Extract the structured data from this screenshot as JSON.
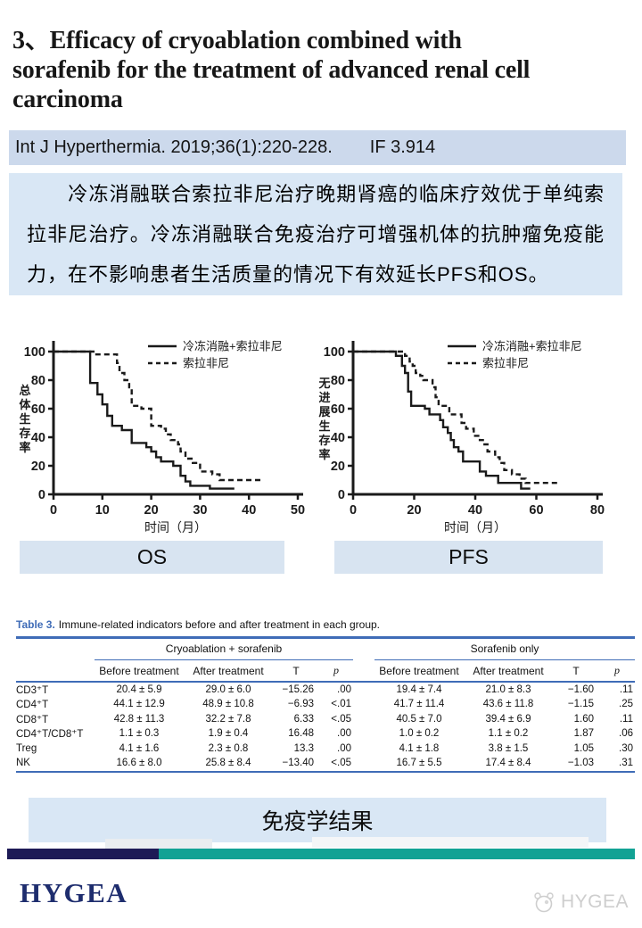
{
  "colors": {
    "citation_bar_bg": "#ccd9ec",
    "panel_bg": "#d9e7f5",
    "label_bg": "#d8e4f1",
    "table_rule_blue": "#3f6cb7",
    "navy": "#1d1a56",
    "teal": "#12a294",
    "logo_navy": "#1e2d6e",
    "ink": "#1a1a1a",
    "watermark_gray": "#c6c6c6"
  },
  "slide": {
    "title_lines": [
      "3、Efficacy of cryoablation combined with",
      "sorafenib for the treatment of advanced renal cell",
      "carcinoma"
    ],
    "citation": "Int J Hyperthermia. 2019;36(1):220-228.",
    "impact_factor": "IF 3.914",
    "summary": "　　冷冻消融联合索拉非尼治疗晚期肾癌的临床疗效优于单纯索拉非尼治疗。冷冻消融联合免疫治疗可增强机体的抗肿瘤免疫能力，在不影响患者生活质量的情况下有效延长PFS和OS。",
    "caption_os": "OS",
    "caption_pfs": "PFS",
    "bottom_caption": "免疫学结果",
    "logo_text": "HYGEA",
    "watermark_text": "HYGEA"
  },
  "chart_data": [
    {
      "type": "line",
      "subtype": "kaplan-meier-step",
      "name": "OS",
      "ylabel": "总体生存率",
      "xlabel": "时间（月）",
      "xlim": [
        0,
        50
      ],
      "xticks": [
        0,
        10,
        20,
        30,
        40,
        50
      ],
      "ylim": [
        0,
        100
      ],
      "yticks": [
        0,
        20,
        40,
        60,
        80,
        100
      ],
      "grid": false,
      "legend_position": "top-right-inside",
      "legend": [
        {
          "label": "冷冻消融+索拉非尼",
          "style": "solid"
        },
        {
          "label": "索拉非尼",
          "style": "dashed"
        }
      ],
      "series": [
        {
          "name": "冷冻消融+索拉非尼",
          "style": "solid",
          "points": [
            [
              0,
              100
            ],
            [
              7.5,
              78
            ],
            [
              9,
              70
            ],
            [
              10,
              63
            ],
            [
              11,
              55
            ],
            [
              12,
              48
            ],
            [
              14,
              45
            ],
            [
              16,
              36
            ],
            [
              19,
              33
            ],
            [
              20,
              30
            ],
            [
              21,
              26
            ],
            [
              22,
              23
            ],
            [
              24.5,
              20
            ],
            [
              26,
              13
            ],
            [
              27,
              9
            ],
            [
              28,
              6
            ],
            [
              32,
              4
            ],
            [
              37,
              4
            ]
          ]
        },
        {
          "name": "索拉非尼",
          "style": "dashed",
          "points": [
            [
              0,
              100
            ],
            [
              8.5,
              98
            ],
            [
              12.5,
              98
            ],
            [
              13,
              92
            ],
            [
              13.5,
              85
            ],
            [
              14.5,
              80
            ],
            [
              15.5,
              75
            ],
            [
              16,
              62
            ],
            [
              18,
              60
            ],
            [
              20,
              48
            ],
            [
              22,
              46
            ],
            [
              23,
              42
            ],
            [
              24,
              38
            ],
            [
              25.5,
              35
            ],
            [
              26,
              30
            ],
            [
              27,
              25
            ],
            [
              28.5,
              22
            ],
            [
              30,
              16
            ],
            [
              32.5,
              14
            ],
            [
              34,
              10
            ],
            [
              43,
              10
            ]
          ]
        }
      ]
    },
    {
      "type": "line",
      "subtype": "kaplan-meier-step",
      "name": "PFS",
      "ylabel": "无进展生存率",
      "xlabel": "时间（月）",
      "xlim": [
        0,
        80
      ],
      "xticks": [
        0,
        20,
        40,
        60,
        80
      ],
      "ylim": [
        0,
        100
      ],
      "yticks": [
        0,
        20,
        40,
        60,
        80,
        100
      ],
      "grid": false,
      "legend_position": "top-right-inside",
      "legend": [
        {
          "label": "冷冻消融+索拉非尼",
          "style": "solid"
        },
        {
          "label": "索拉非尼",
          "style": "dashed"
        }
      ],
      "series": [
        {
          "name": "冷冻消融+索拉非尼",
          "style": "solid",
          "points": [
            [
              0,
              100
            ],
            [
              14,
              97
            ],
            [
              16,
              90
            ],
            [
              17,
              85
            ],
            [
              18,
              72
            ],
            [
              19,
              62
            ],
            [
              23.5,
              60
            ],
            [
              25,
              56
            ],
            [
              28.5,
              52
            ],
            [
              29.5,
              47
            ],
            [
              31,
              43
            ],
            [
              32,
              38
            ],
            [
              33,
              33
            ],
            [
              34.5,
              30
            ],
            [
              36,
              23
            ],
            [
              41.5,
              16
            ],
            [
              43.5,
              13
            ],
            [
              47.5,
              8
            ],
            [
              55,
              4
            ],
            [
              58,
              4
            ]
          ]
        },
        {
          "name": "索拉非尼",
          "style": "dashed",
          "points": [
            [
              0,
              100
            ],
            [
              15,
              100
            ],
            [
              17,
              97
            ],
            [
              18.5,
              93
            ],
            [
              19.5,
              90
            ],
            [
              20.5,
              85
            ],
            [
              22,
              83
            ],
            [
              23,
              80
            ],
            [
              26,
              75
            ],
            [
              27,
              68
            ],
            [
              28,
              62
            ],
            [
              31.5,
              56
            ],
            [
              35.5,
              50
            ],
            [
              37,
              46
            ],
            [
              39.5,
              41
            ],
            [
              41.5,
              38
            ],
            [
              43,
              35
            ],
            [
              44,
              30
            ],
            [
              46.5,
              26
            ],
            [
              48,
              22
            ],
            [
              49.5,
              17
            ],
            [
              52,
              14
            ],
            [
              54.5,
              11
            ],
            [
              56.5,
              8
            ],
            [
              67,
              8
            ]
          ]
        }
      ]
    }
  ],
  "table": {
    "caption_label": "Table 3.",
    "caption_text": "Immune-related indicators before and after treatment in each group.",
    "groups": [
      "Cryoablation + sorafenib",
      "Sorafenib only"
    ],
    "columns": [
      "Before treatment",
      "After treatment",
      "T",
      "p"
    ],
    "rows": [
      {
        "label": "CD3⁺T",
        "g1": [
          "20.4 ± 5.9",
          "29.0 ± 6.0",
          "−15.26",
          ".00"
        ],
        "g2": [
          "19.4 ± 7.4",
          "21.0 ± 8.3",
          "−1.60",
          ".11"
        ]
      },
      {
        "label": "CD4⁺T",
        "g1": [
          "44.1 ± 12.9",
          "48.9 ± 10.8",
          "−6.93",
          "<.01"
        ],
        "g2": [
          "41.7 ± 11.4",
          "43.6 ± 11.8",
          "−1.15",
          ".25"
        ]
      },
      {
        "label": "CD8⁺T",
        "g1": [
          "42.8 ± 11.3",
          "32.2 ± 7.8",
          "6.33",
          "<.05"
        ],
        "g2": [
          "40.5 ± 7.0",
          "39.4 ± 6.9",
          "1.60",
          ".11"
        ]
      },
      {
        "label": "CD4⁺T/CD8⁺T",
        "g1": [
          "1.1 ± 0.3",
          "1.9 ± 0.4",
          "16.48",
          ".00"
        ],
        "g2": [
          "1.0 ± 0.2",
          "1.1 ± 0.2",
          "1.87",
          ".06"
        ]
      },
      {
        "label": "Treg",
        "g1": [
          "4.1 ± 1.6",
          "2.3 ± 0.8",
          "13.3",
          ".00"
        ],
        "g2": [
          "4.1 ± 1.8",
          "3.8 ± 1.5",
          "1.05",
          ".30"
        ]
      },
      {
        "label": "NK",
        "g1": [
          "16.6 ± 8.0",
          "25.8 ± 8.4",
          "−13.40",
          "<.05"
        ],
        "g2": [
          "16.7 ± 5.5",
          "17.4 ± 8.4",
          "−1.03",
          ".31"
        ]
      }
    ]
  }
}
